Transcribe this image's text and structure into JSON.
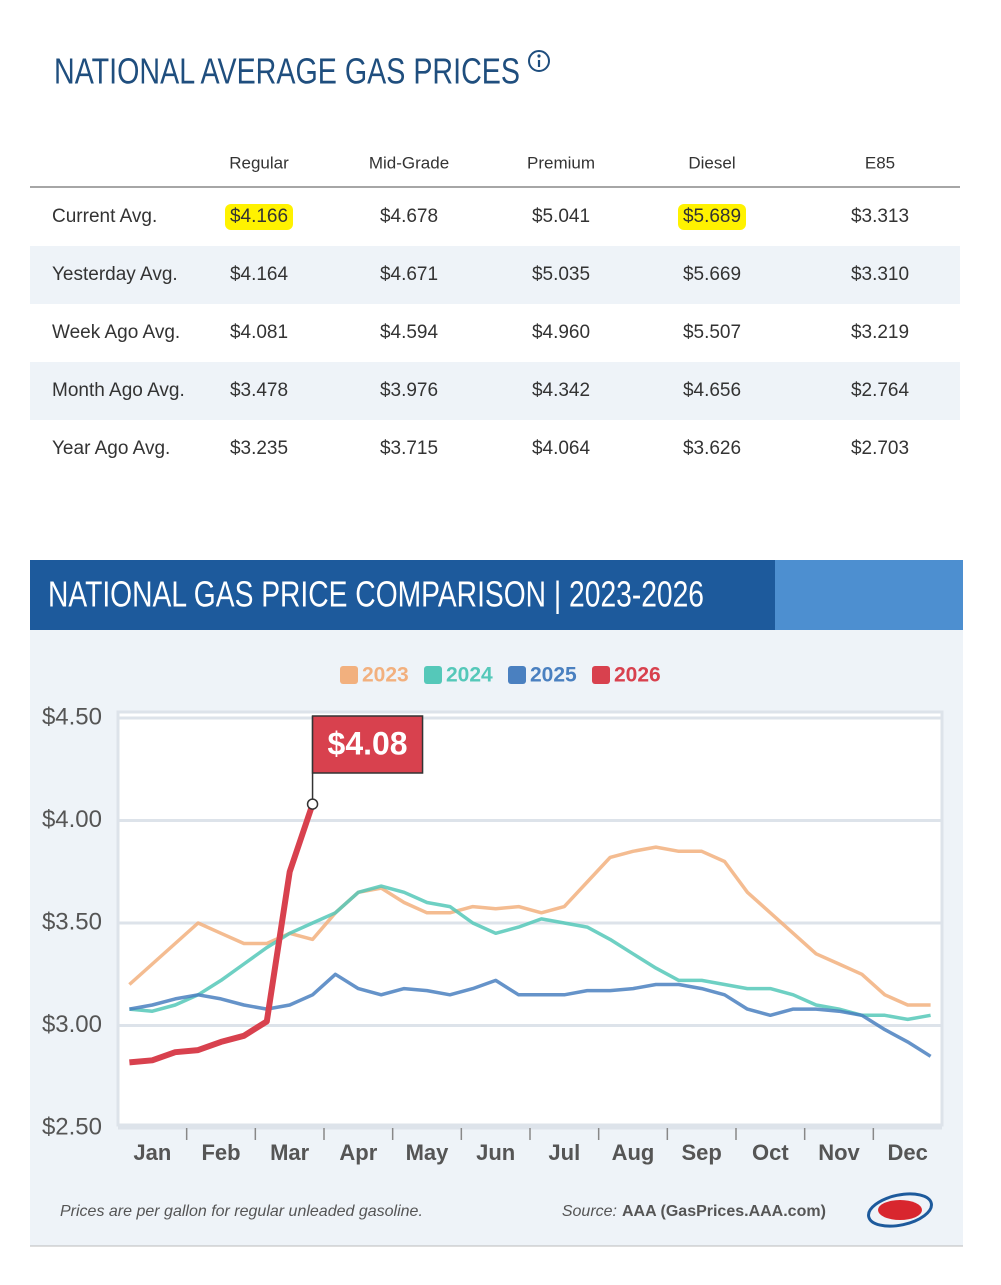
{
  "header": {
    "title": "NATIONAL AVERAGE GAS PRICES"
  },
  "table": {
    "columns": [
      "Regular",
      "Mid-Grade",
      "Premium",
      "Diesel",
      "E85"
    ],
    "rows": [
      [
        "Current Avg.",
        "$4.166",
        "$4.678",
        "$5.041",
        "$5.689",
        "$3.313"
      ],
      [
        "Yesterday Avg.",
        "$4.164",
        "$4.671",
        "$5.035",
        "$5.669",
        "$3.310"
      ],
      [
        "Week Ago Avg.",
        "$4.081",
        "$4.594",
        "$4.960",
        "$5.507",
        "$3.219"
      ],
      [
        "Month Ago Avg.",
        "$3.478",
        "$3.976",
        "$4.342",
        "$4.656",
        "$2.764"
      ],
      [
        "Year Ago Avg.",
        "$3.235",
        "$3.715",
        "$4.064",
        "$3.626",
        "$2.703"
      ]
    ]
  },
  "chart_data": {
    "type": "line",
    "title": "NATIONAL GAS PRICE COMPARISON | 2023-2026",
    "categories": [
      null,
      "Jan",
      null,
      null,
      "Feb",
      null,
      null,
      "Mar",
      null,
      null,
      "Apr",
      null,
      null,
      "May",
      null,
      null,
      "Jun",
      null,
      null,
      "Jul",
      null,
      null,
      "Aug",
      null,
      null,
      "Sep",
      null,
      null,
      "Oct",
      null,
      null,
      "Nov",
      null,
      null,
      "Dec",
      null
    ],
    "series": [
      {
        "name": "2023",
        "color": "#f2b07e",
        "values": [
          3.2,
          3.3,
          3.4,
          3.5,
          3.45,
          3.4,
          3.4,
          3.45,
          3.42,
          3.55,
          3.65,
          3.67,
          3.6,
          3.55,
          3.55,
          3.58,
          3.57,
          3.58,
          3.55,
          3.58,
          3.7,
          3.82,
          3.85,
          3.87,
          3.85,
          3.85,
          3.8,
          3.65,
          3.55,
          3.45,
          3.35,
          3.3,
          3.25,
          3.15,
          3.1,
          3.1
        ]
      },
      {
        "name": "2024",
        "color": "#55c8b9",
        "values": [
          3.08,
          3.07,
          3.1,
          3.15,
          3.22,
          3.3,
          3.38,
          3.45,
          3.5,
          3.55,
          3.65,
          3.68,
          3.65,
          3.6,
          3.58,
          3.5,
          3.45,
          3.48,
          3.52,
          3.5,
          3.48,
          3.42,
          3.35,
          3.28,
          3.22,
          3.22,
          3.2,
          3.18,
          3.18,
          3.15,
          3.1,
          3.08,
          3.05,
          3.05,
          3.03,
          3.05
        ]
      },
      {
        "name": "2025",
        "color": "#4a80c0",
        "values": [
          3.08,
          3.1,
          3.13,
          3.15,
          3.13,
          3.1,
          3.08,
          3.1,
          3.15,
          3.25,
          3.18,
          3.15,
          3.18,
          3.17,
          3.15,
          3.18,
          3.22,
          3.15,
          3.15,
          3.15,
          3.17,
          3.17,
          3.18,
          3.2,
          3.2,
          3.18,
          3.15,
          3.08,
          3.05,
          3.08,
          3.08,
          3.07,
          3.05,
          2.98,
          2.92,
          2.85
        ]
      },
      {
        "name": "2026",
        "color": "#d8414e",
        "values": [
          2.82,
          2.83,
          2.87,
          2.88,
          2.92,
          2.95,
          3.02,
          3.75,
          4.08,
          null,
          null,
          null,
          null,
          null,
          null,
          null,
          null,
          null,
          null,
          null,
          null,
          null,
          null,
          null,
          null,
          null,
          null,
          null,
          null,
          null,
          null,
          null,
          null,
          null,
          null,
          null
        ],
        "value_labels": [
          null,
          null,
          null,
          null,
          null,
          null,
          null,
          null,
          "$4.08",
          null,
          null,
          null,
          null,
          null,
          null,
          null,
          null,
          null,
          null,
          null,
          null,
          null,
          null,
          null,
          null,
          null,
          null,
          null,
          null,
          null,
          null,
          null,
          null,
          null,
          null,
          null
        ]
      }
    ],
    "ylim": [
      2.5,
      4.5
    ],
    "yticks": [
      {
        "value": 2.5,
        "label": "$2.50"
      },
      {
        "value": 3,
        "label": "$3.00"
      },
      {
        "value": 3.5,
        "label": "$3.50"
      },
      {
        "value": 4,
        "label": "$4.00"
      },
      {
        "value": 4.5,
        "label": "$4.50"
      }
    ],
    "grid": true,
    "note": "Prices are per gallon for regular unleaded gasoline.",
    "source_label": "Source:",
    "source": "AAA (GasPrices.AAA.com)"
  }
}
